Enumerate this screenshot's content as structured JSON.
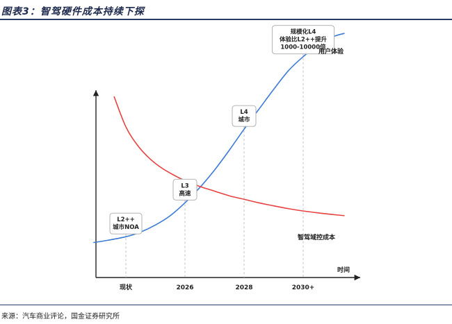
{
  "figure": {
    "title": "图表3：智驾硬件成本持续下探",
    "source": "来源：汽车商业评论，国金证券研究所"
  },
  "chart_data": {
    "type": "line",
    "title": "图表3：智驾硬件成本持续下探",
    "xlabel": "时间",
    "ylabel": "",
    "categories": [
      "现状",
      "2026",
      "2028",
      "2030+"
    ],
    "xlim": [
      -0.6,
      3.9
    ],
    "ylim": [
      0,
      1
    ],
    "grid": false,
    "series": [
      {
        "name": "用户体验",
        "color": "#3a7bd5",
        "x": [
          -0.55,
          -0.3,
          0.0,
          0.25,
          0.5,
          0.75,
          1.0,
          1.25,
          1.5,
          1.75,
          2.0,
          2.25,
          2.5,
          2.75,
          3.0,
          3.25,
          3.5,
          3.7
        ],
        "y": [
          0.105,
          0.115,
          0.13,
          0.15,
          0.18,
          0.22,
          0.275,
          0.34,
          0.415,
          0.5,
          0.59,
          0.675,
          0.76,
          0.84,
          0.9,
          0.95,
          0.985,
          1.0
        ]
      },
      {
        "name": "智驾域控成本",
        "color": "#e84040",
        "x": [
          -0.2,
          0.0,
          0.2,
          0.4,
          0.6,
          0.8,
          1.0,
          1.25,
          1.5,
          1.75,
          2.0,
          2.25,
          2.5,
          2.75,
          3.0,
          3.25,
          3.5,
          3.7
        ],
        "y": [
          0.73,
          0.6,
          0.52,
          0.465,
          0.425,
          0.395,
          0.37,
          0.345,
          0.325,
          0.305,
          0.29,
          0.275,
          0.262,
          0.25,
          0.24,
          0.232,
          0.225,
          0.22
        ]
      }
    ],
    "annotations": [
      {
        "x": 0,
        "y": 0.13,
        "lines": [
          "L2++",
          "城市NOA"
        ]
      },
      {
        "x": 1,
        "y": 0.275,
        "lines": [
          "L3",
          "高速"
        ]
      },
      {
        "x": 2,
        "y": 0.59,
        "lines": [
          "L4",
          "城市"
        ]
      },
      {
        "x": 3,
        "y": 0.9,
        "lines": [
          "规模化L4",
          "体验比L2++提升",
          "1000-10000倍"
        ]
      }
    ]
  }
}
